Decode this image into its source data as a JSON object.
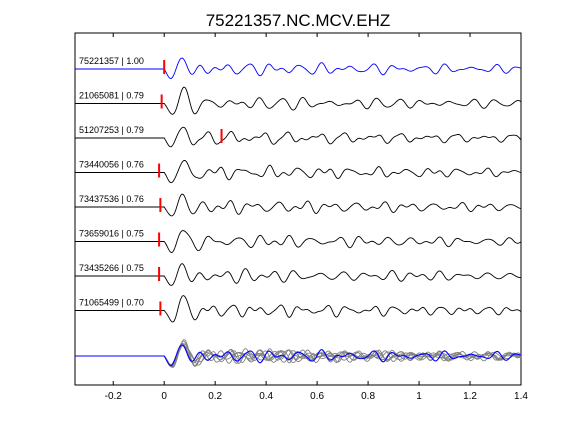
{
  "chart_data": {
    "type": "line",
    "title": "75221357.NC.MCV.EHZ",
    "xlabel": "",
    "ylabel": "",
    "xlim": [
      -0.35,
      1.4
    ],
    "x_ticks": [
      -0.2,
      0,
      0.2,
      0.4,
      0.6,
      0.8,
      1,
      1.2,
      1.4
    ],
    "x_tick_labels": [
      "-0.2",
      "0",
      "0.2",
      "0.4",
      "0.6",
      "0.8",
      "1",
      "1.2",
      "1.4"
    ],
    "grid": false,
    "legend": "none",
    "series": [
      {
        "name": "75221357 | 1.00",
        "color": "#0000ff",
        "pick_time": 0.0,
        "seed": 1
      },
      {
        "name": "21065081 | 0.79",
        "color": "#000000",
        "pick_time": -0.01,
        "seed": 2
      },
      {
        "name": "51207253 | 0.79",
        "color": "#000000",
        "pick_time": 0.225,
        "seed": 3
      },
      {
        "name": "73440056 | 0.76",
        "color": "#000000",
        "pick_time": -0.02,
        "seed": 4
      },
      {
        "name": "73437536 | 0.76",
        "color": "#000000",
        "pick_time": -0.015,
        "seed": 5
      },
      {
        "name": "73659016 | 0.75",
        "color": "#000000",
        "pick_time": -0.02,
        "seed": 6
      },
      {
        "name": "73435266 | 0.75",
        "color": "#000000",
        "pick_time": -0.02,
        "seed": 7
      },
      {
        "name": "71065499 | 0.70",
        "color": "#000000",
        "pick_time": -0.015,
        "seed": 8
      }
    ],
    "stack": {
      "colors": [
        "#808080",
        "#0000ff"
      ]
    },
    "pick_color": "#ff0000"
  }
}
